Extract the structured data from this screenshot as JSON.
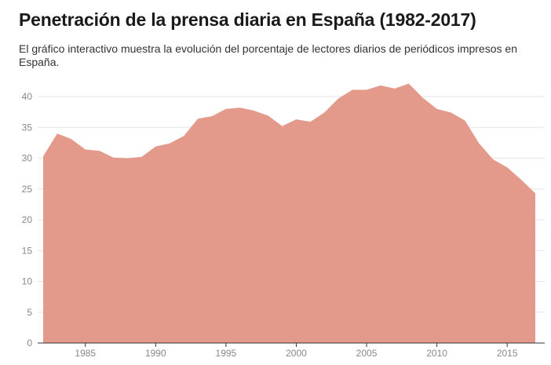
{
  "header": {
    "title": "Penetración de la prensa diaria en España (1982-2017)",
    "subtitle": "El gráfico interactivo muestra la evolución del porcentaje de lectores diarios de periódicos impresos en España."
  },
  "colors": {
    "area": "#e49a8b",
    "grid": "#e6e6e6",
    "axis": "#333333",
    "tick_text": "#888888"
  },
  "chart_data": {
    "type": "area",
    "title": "Penetración de la prensa diaria en España (1982-2017)",
    "xlabel": "",
    "ylabel": "",
    "xlim": [
      1982,
      2017
    ],
    "ylim": [
      0,
      42
    ],
    "grid": true,
    "legend": "none",
    "x_ticks": [
      1985,
      1990,
      1995,
      2000,
      2005,
      2010,
      2015
    ],
    "y_ticks": [
      0,
      5,
      10,
      15,
      20,
      25,
      30,
      35,
      40
    ],
    "series": [
      {
        "x": [
          1982,
          1983,
          1984,
          1985,
          1986,
          1987,
          1988,
          1989,
          1990,
          1991,
          1992,
          1993,
          1994,
          1995,
          1996,
          1997,
          1998,
          1999,
          2000,
          2001,
          2002,
          2003,
          2004,
          2005,
          2006,
          2007,
          2008,
          2009,
          2010,
          2011,
          2012,
          2013,
          2014,
          2015,
          2016,
          2017
        ],
        "values": [
          30.3,
          34.0,
          33.1,
          31.4,
          31.2,
          30.1,
          30.0,
          30.2,
          31.9,
          32.4,
          33.6,
          36.4,
          36.8,
          38.0,
          38.2,
          37.7,
          36.9,
          35.2,
          36.3,
          35.9,
          37.4,
          39.7,
          41.1,
          41.1,
          41.8,
          41.3,
          42.1,
          39.8,
          38.0,
          37.4,
          36.1,
          32.4,
          29.8,
          28.5,
          26.5,
          24.3
        ]
      }
    ]
  }
}
